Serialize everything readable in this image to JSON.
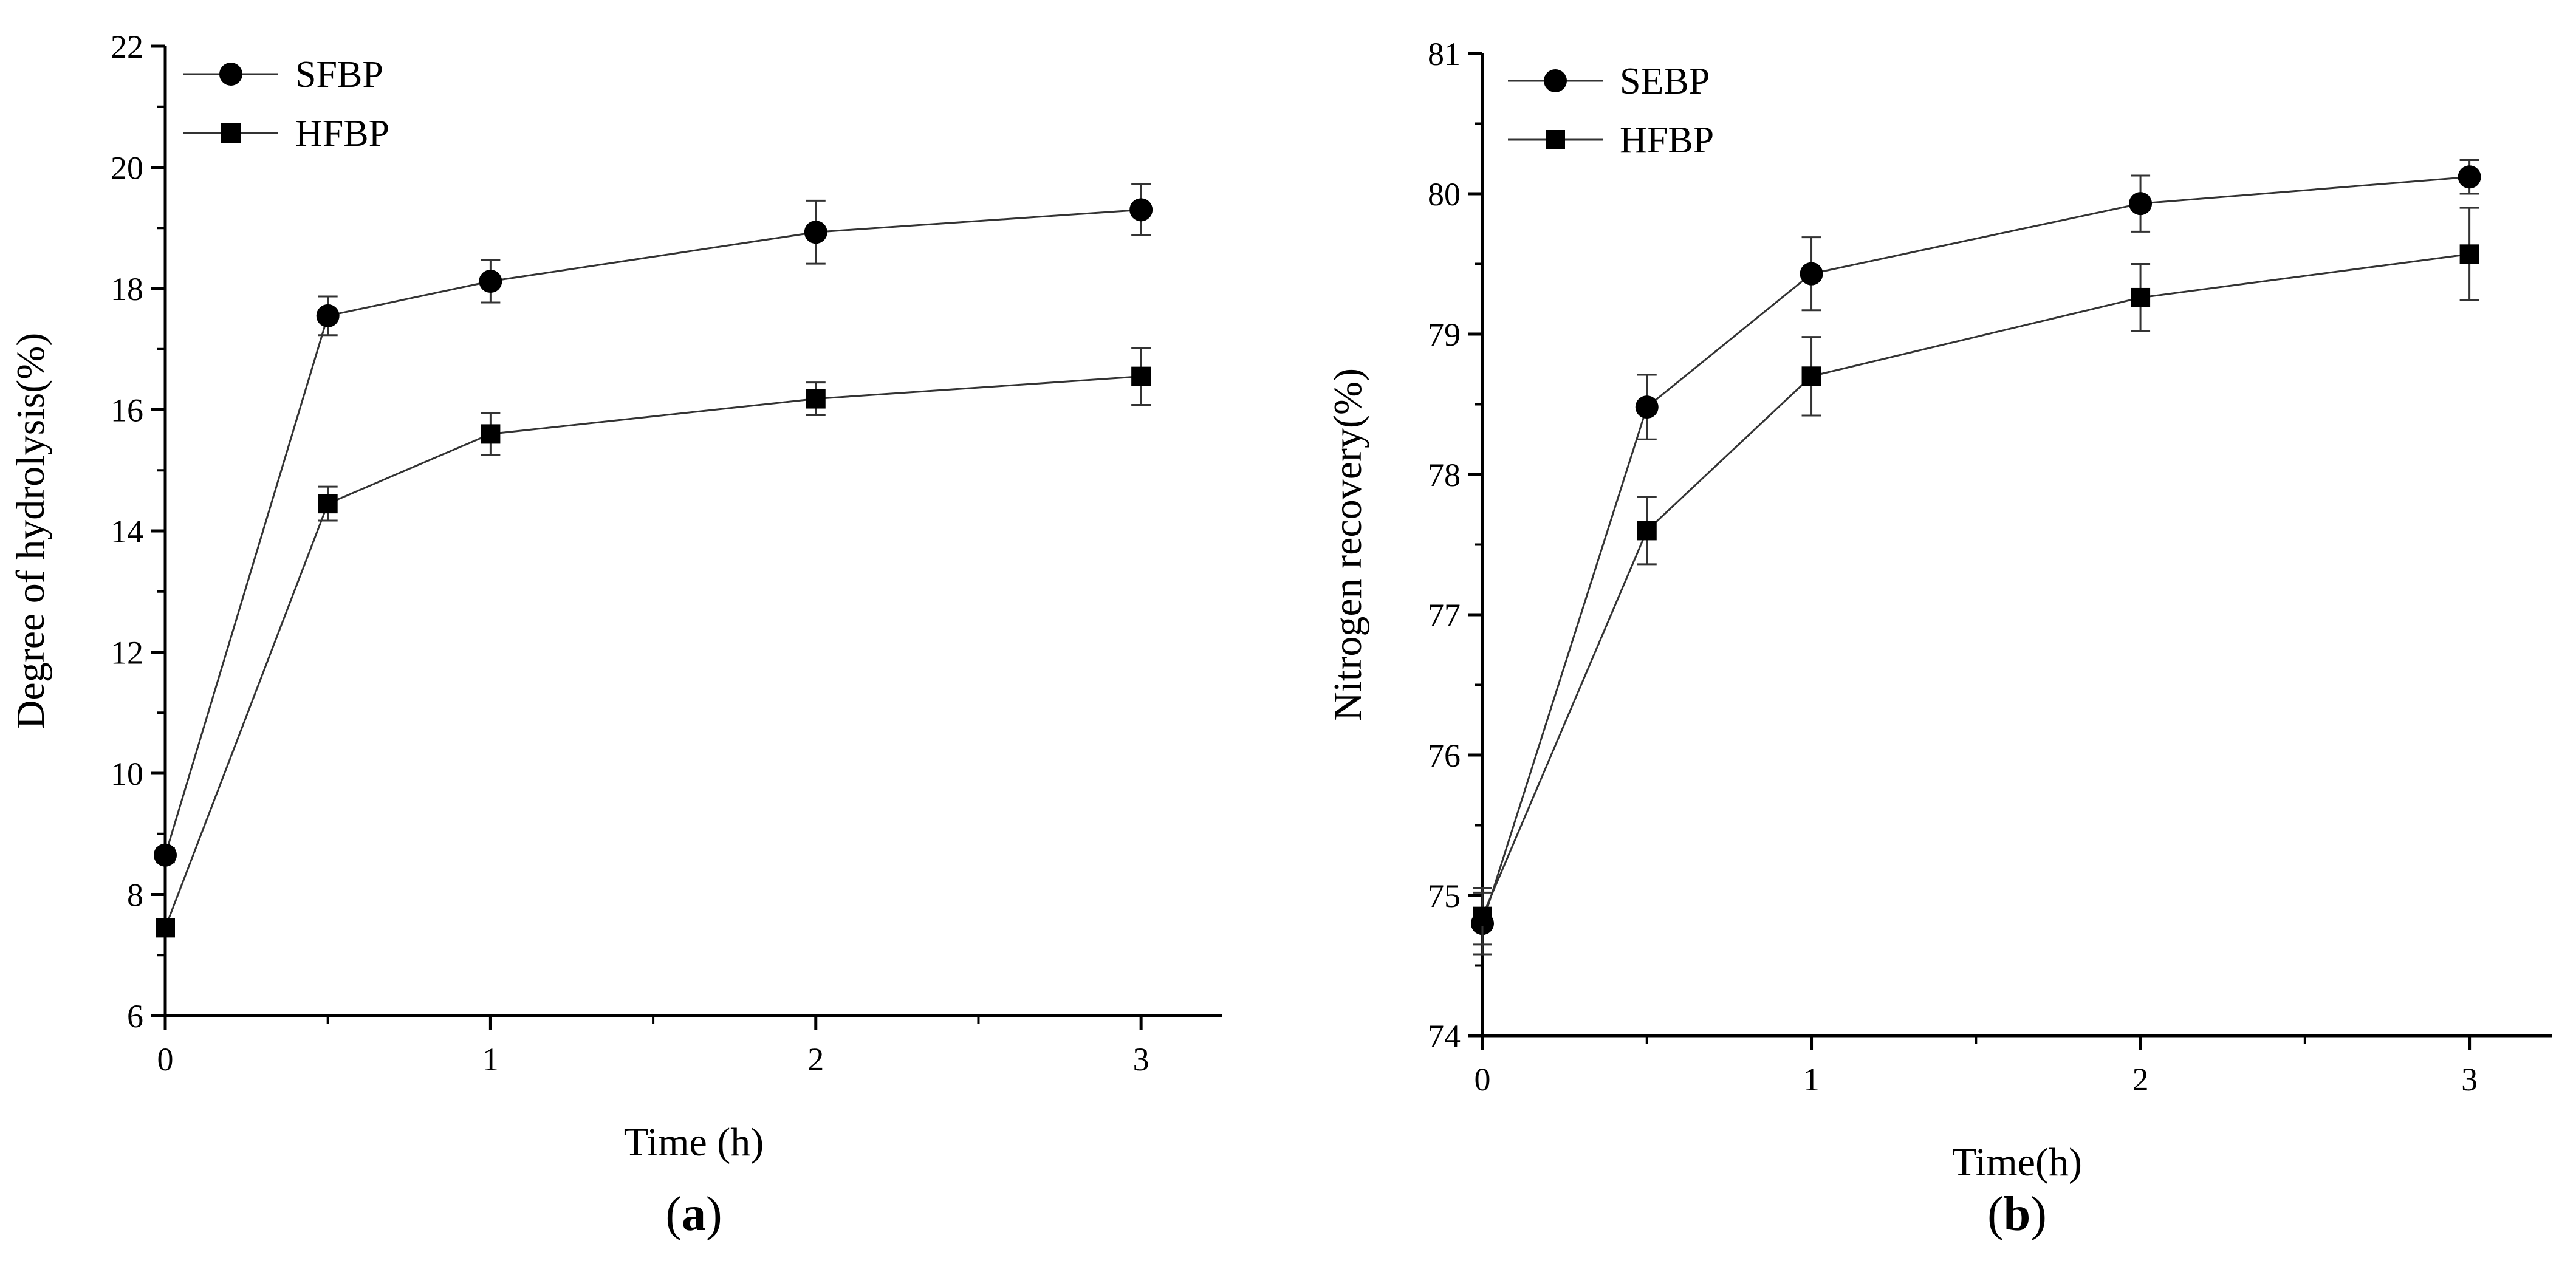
{
  "chart_data": [
    {
      "type": "line",
      "panel_label": "a",
      "xlabel": "Time (h)",
      "ylabel": "Degree of hydrolysis(%)",
      "xlim": [
        0,
        3.25
      ],
      "ylim": [
        6,
        22
      ],
      "x_ticks": [
        0,
        1,
        2,
        3
      ],
      "y_ticks": [
        6,
        8,
        10,
        12,
        14,
        16,
        18,
        20,
        22
      ],
      "legend_position": "top-left",
      "x": [
        0,
        0.5,
        1,
        2,
        3
      ],
      "series": [
        {
          "name": "SFBP",
          "marker": "circle",
          "values": [
            8.65,
            17.55,
            18.12,
            18.93,
            19.3
          ],
          "errors": [
            0.12,
            0.32,
            0.35,
            0.52,
            0.42
          ]
        },
        {
          "name": "HFBP",
          "marker": "square",
          "values": [
            7.45,
            14.45,
            15.6,
            16.18,
            16.55
          ],
          "errors": [
            0.12,
            0.28,
            0.35,
            0.27,
            0.47
          ]
        }
      ]
    },
    {
      "type": "line",
      "panel_label": "b",
      "xlabel": "Time(h)",
      "ylabel": "Nitrogen recovery(%)",
      "xlim": [
        0,
        3.25
      ],
      "ylim": [
        74,
        81
      ],
      "x_ticks": [
        0,
        1,
        2,
        3
      ],
      "y_ticks": [
        74,
        75,
        76,
        77,
        78,
        79,
        80,
        81
      ],
      "legend_position": "top-left",
      "x": [
        0,
        0.5,
        1,
        2,
        3
      ],
      "series": [
        {
          "name": "SEBP",
          "marker": "circle",
          "values": [
            74.8,
            78.48,
            79.43,
            79.93,
            80.12
          ],
          "errors": [
            0.22,
            0.23,
            0.26,
            0.2,
            0.12
          ]
        },
        {
          "name": "HFBP",
          "marker": "square",
          "values": [
            74.85,
            77.6,
            78.7,
            79.26,
            79.57
          ],
          "errors": [
            0.2,
            0.24,
            0.28,
            0.24,
            0.33
          ]
        }
      ]
    }
  ]
}
